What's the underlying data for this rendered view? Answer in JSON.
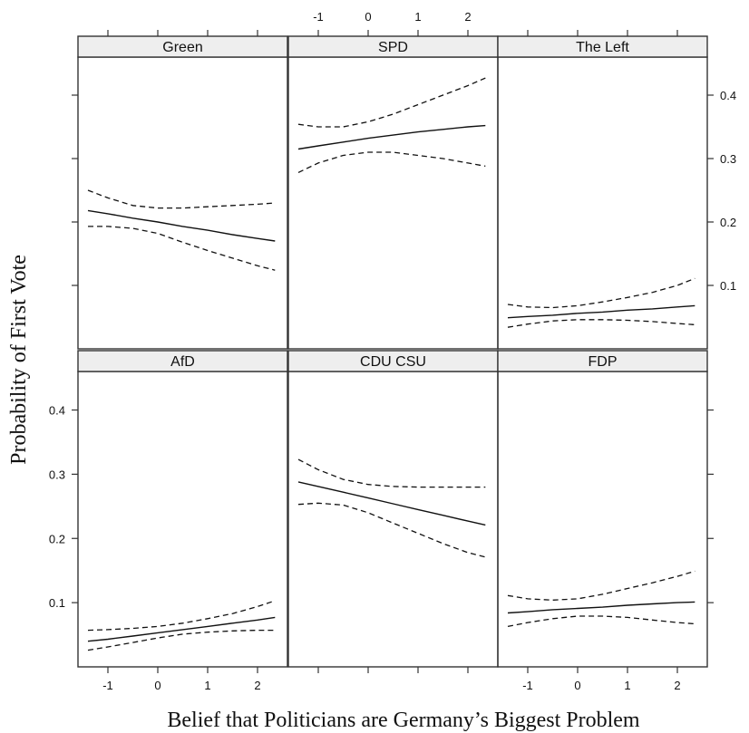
{
  "chart_data": {
    "type": "line",
    "xlabel": "Belief that Politicians are Germany’s Biggest Problem",
    "ylabel": "Probability of First Vote",
    "xlim": [
      -1.6,
      2.6
    ],
    "ylim": [
      0,
      0.46
    ],
    "x_ticks": [
      -1,
      0,
      1,
      2
    ],
    "y_ticks": [
      0.1,
      0.2,
      0.3,
      0.4
    ],
    "layout": "2 rows x 3 columns, x-axis labels alternate bottom/top, y-axis labels alternate left/right",
    "line_styles": {
      "estimate": "solid",
      "confidence_interval": "dashed"
    },
    "colors": {
      "strip": "#eeeeee",
      "line": "#111111",
      "frame": "#333333"
    },
    "panels": [
      {
        "name": "Green",
        "x": [
          -1.4,
          -1,
          -0.5,
          0,
          0.5,
          1,
          1.5,
          2,
          2.35
        ],
        "estimate": [
          0.218,
          0.213,
          0.206,
          0.2,
          0.193,
          0.187,
          0.18,
          0.174,
          0.17
        ],
        "lower": [
          0.193,
          0.193,
          0.19,
          0.182,
          0.168,
          0.155,
          0.143,
          0.131,
          0.124
        ],
        "upper": [
          0.25,
          0.238,
          0.226,
          0.222,
          0.222,
          0.224,
          0.226,
          0.228,
          0.23
        ]
      },
      {
        "name": "SPD",
        "x": [
          -1.4,
          -1,
          -0.5,
          0,
          0.5,
          1,
          1.5,
          2,
          2.35
        ],
        "estimate": [
          0.315,
          0.32,
          0.326,
          0.332,
          0.337,
          0.342,
          0.346,
          0.35,
          0.352
        ],
        "lower": [
          0.278,
          0.293,
          0.305,
          0.31,
          0.31,
          0.305,
          0.3,
          0.293,
          0.288
        ],
        "upper": [
          0.354,
          0.35,
          0.35,
          0.358,
          0.37,
          0.385,
          0.4,
          0.415,
          0.427
        ]
      },
      {
        "name": "The Left",
        "x": [
          -1.4,
          -1,
          -0.5,
          0,
          0.5,
          1,
          1.5,
          2,
          2.35
        ],
        "estimate": [
          0.049,
          0.051,
          0.053,
          0.056,
          0.058,
          0.061,
          0.063,
          0.066,
          0.068
        ],
        "lower": [
          0.034,
          0.039,
          0.044,
          0.046,
          0.046,
          0.045,
          0.043,
          0.04,
          0.038
        ],
        "upper": [
          0.07,
          0.066,
          0.065,
          0.068,
          0.074,
          0.081,
          0.089,
          0.1,
          0.111
        ]
      },
      {
        "name": "AfD",
        "x": [
          -1.4,
          -1,
          -0.5,
          0,
          0.5,
          1,
          1.5,
          2,
          2.35
        ],
        "estimate": [
          0.04,
          0.043,
          0.048,
          0.053,
          0.058,
          0.063,
          0.068,
          0.073,
          0.077
        ],
        "lower": [
          0.026,
          0.031,
          0.038,
          0.045,
          0.051,
          0.054,
          0.056,
          0.057,
          0.057
        ],
        "upper": [
          0.057,
          0.058,
          0.06,
          0.063,
          0.068,
          0.075,
          0.083,
          0.094,
          0.103
        ]
      },
      {
        "name": "CDU CSU",
        "x": [
          -1.4,
          -1,
          -0.5,
          0,
          0.5,
          1,
          1.5,
          2,
          2.35
        ],
        "estimate": [
          0.288,
          0.281,
          0.272,
          0.263,
          0.254,
          0.245,
          0.236,
          0.227,
          0.221
        ],
        "lower": [
          0.253,
          0.255,
          0.252,
          0.24,
          0.224,
          0.208,
          0.192,
          0.178,
          0.171
        ],
        "upper": [
          0.323,
          0.307,
          0.292,
          0.284,
          0.281,
          0.28,
          0.28,
          0.28,
          0.28
        ]
      },
      {
        "name": "FDP",
        "x": [
          -1.4,
          -1,
          -0.5,
          0,
          0.5,
          1,
          1.5,
          2,
          2.35
        ],
        "estimate": [
          0.084,
          0.086,
          0.089,
          0.091,
          0.093,
          0.096,
          0.098,
          0.1,
          0.101
        ],
        "lower": [
          0.063,
          0.069,
          0.075,
          0.079,
          0.079,
          0.077,
          0.073,
          0.069,
          0.067
        ],
        "upper": [
          0.111,
          0.106,
          0.104,
          0.106,
          0.113,
          0.122,
          0.131,
          0.141,
          0.149
        ]
      }
    ]
  }
}
